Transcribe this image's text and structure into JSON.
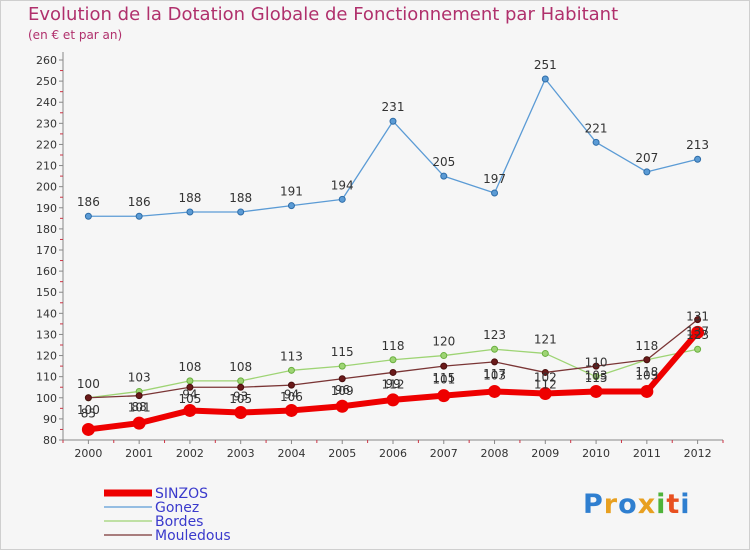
{
  "title": "Evolution de la Dotation Globale de Fonctionnement par Habitant",
  "subtitle": "(en € et par an)",
  "logo": {
    "text": "Proxiti",
    "colors": [
      "#2f7fd0",
      "#e8a020",
      "#2f7fd0",
      "#e8a020",
      "#4fb33a",
      "#e85020",
      "#2f7fd0"
    ]
  },
  "chart_data": {
    "type": "line",
    "title": "Evolution de la Dotation Globale de Fonctionnement par Habitant",
    "subtitle": "(en € et par an)",
    "x": [
      "2000",
      "2001",
      "2002",
      "2003",
      "2004",
      "2005",
      "2006",
      "2007",
      "2008",
      "2009",
      "2010",
      "2011",
      "2012"
    ],
    "ylim": [
      80,
      260
    ],
    "yticks": [
      80,
      90,
      100,
      110,
      120,
      130,
      140,
      150,
      160,
      170,
      180,
      190,
      200,
      210,
      220,
      230,
      240,
      250,
      260
    ],
    "grid": false,
    "legend_position": "bottom-left",
    "series": [
      {
        "name": "Gonez",
        "color": "#5b9bd5",
        "values": [
          186,
          186,
          188,
          188,
          191,
          194,
          231,
          205,
          197,
          251,
          221,
          207,
          213
        ],
        "labels": [
          "186",
          "186",
          "188",
          "188",
          "191",
          "194",
          "231",
          "205",
          "197",
          "251",
          "221",
          "207",
          "213"
        ]
      },
      {
        "name": "Bordes",
        "color": "#9ed474",
        "values": [
          100,
          103,
          108,
          108,
          113,
          115,
          118,
          120,
          123,
          121,
          110,
          118,
          123
        ],
        "labels": [
          "100",
          "103",
          "108",
          "108",
          "113",
          "115",
          "118",
          "120",
          "123",
          "121",
          "110",
          "118",
          "123"
        ]
      },
      {
        "name": "Mouledous",
        "color": "#7a3535",
        "values": [
          100,
          101,
          105,
          105,
          106,
          109,
          112,
          115,
          117,
          112,
          115,
          118,
          137
        ],
        "labels": [
          "100",
          "101",
          "105",
          "105",
          "106",
          "109",
          "112",
          "115",
          "117",
          "112",
          "115",
          "118",
          "137"
        ]
      },
      {
        "name": "SINZOS",
        "color": "#ee0000",
        "values": [
          85,
          88,
          94,
          93,
          94,
          96,
          99,
          101,
          103,
          102,
          103,
          103,
          131
        ],
        "labels": [
          "85",
          "88",
          "94",
          "93",
          "94",
          "96",
          "99",
          "101",
          "103",
          "102",
          "103",
          "103",
          "131"
        ]
      }
    ],
    "legend": [
      {
        "name": "SINZOS",
        "color": "#ee0000",
        "text_color": "#3a3acc"
      },
      {
        "name": "Gonez",
        "color": "#5b9bd5",
        "text_color": "#3a3acc"
      },
      {
        "name": "Bordes",
        "color": "#9ed474",
        "text_color": "#3a3acc"
      },
      {
        "name": "Mouledous",
        "color": "#7a3535",
        "text_color": "#3a3acc"
      }
    ]
  }
}
